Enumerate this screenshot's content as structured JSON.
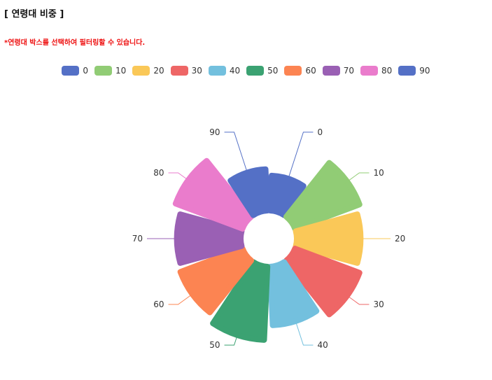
{
  "header": {
    "title": "[ 연령대 비중 ]",
    "notice": "*연령대 박스를 선택하여 필터링할 수 있습니다."
  },
  "chart_data": {
    "type": "pie",
    "subtype": "rose",
    "categories": [
      "0",
      "10",
      "20",
      "30",
      "40",
      "50",
      "60",
      "70",
      "80",
      "90"
    ],
    "values": [
      55,
      108,
      100,
      108,
      92,
      115,
      104,
      100,
      112,
      65
    ],
    "colors": [
      "#5470c6",
      "#91cc75",
      "#fac858",
      "#ee6666",
      "#73c0de",
      "#3ba272",
      "#fc8452",
      "#9a60b4",
      "#ea7ccc",
      "#5470c6"
    ],
    "legend_position": "top-center"
  }
}
